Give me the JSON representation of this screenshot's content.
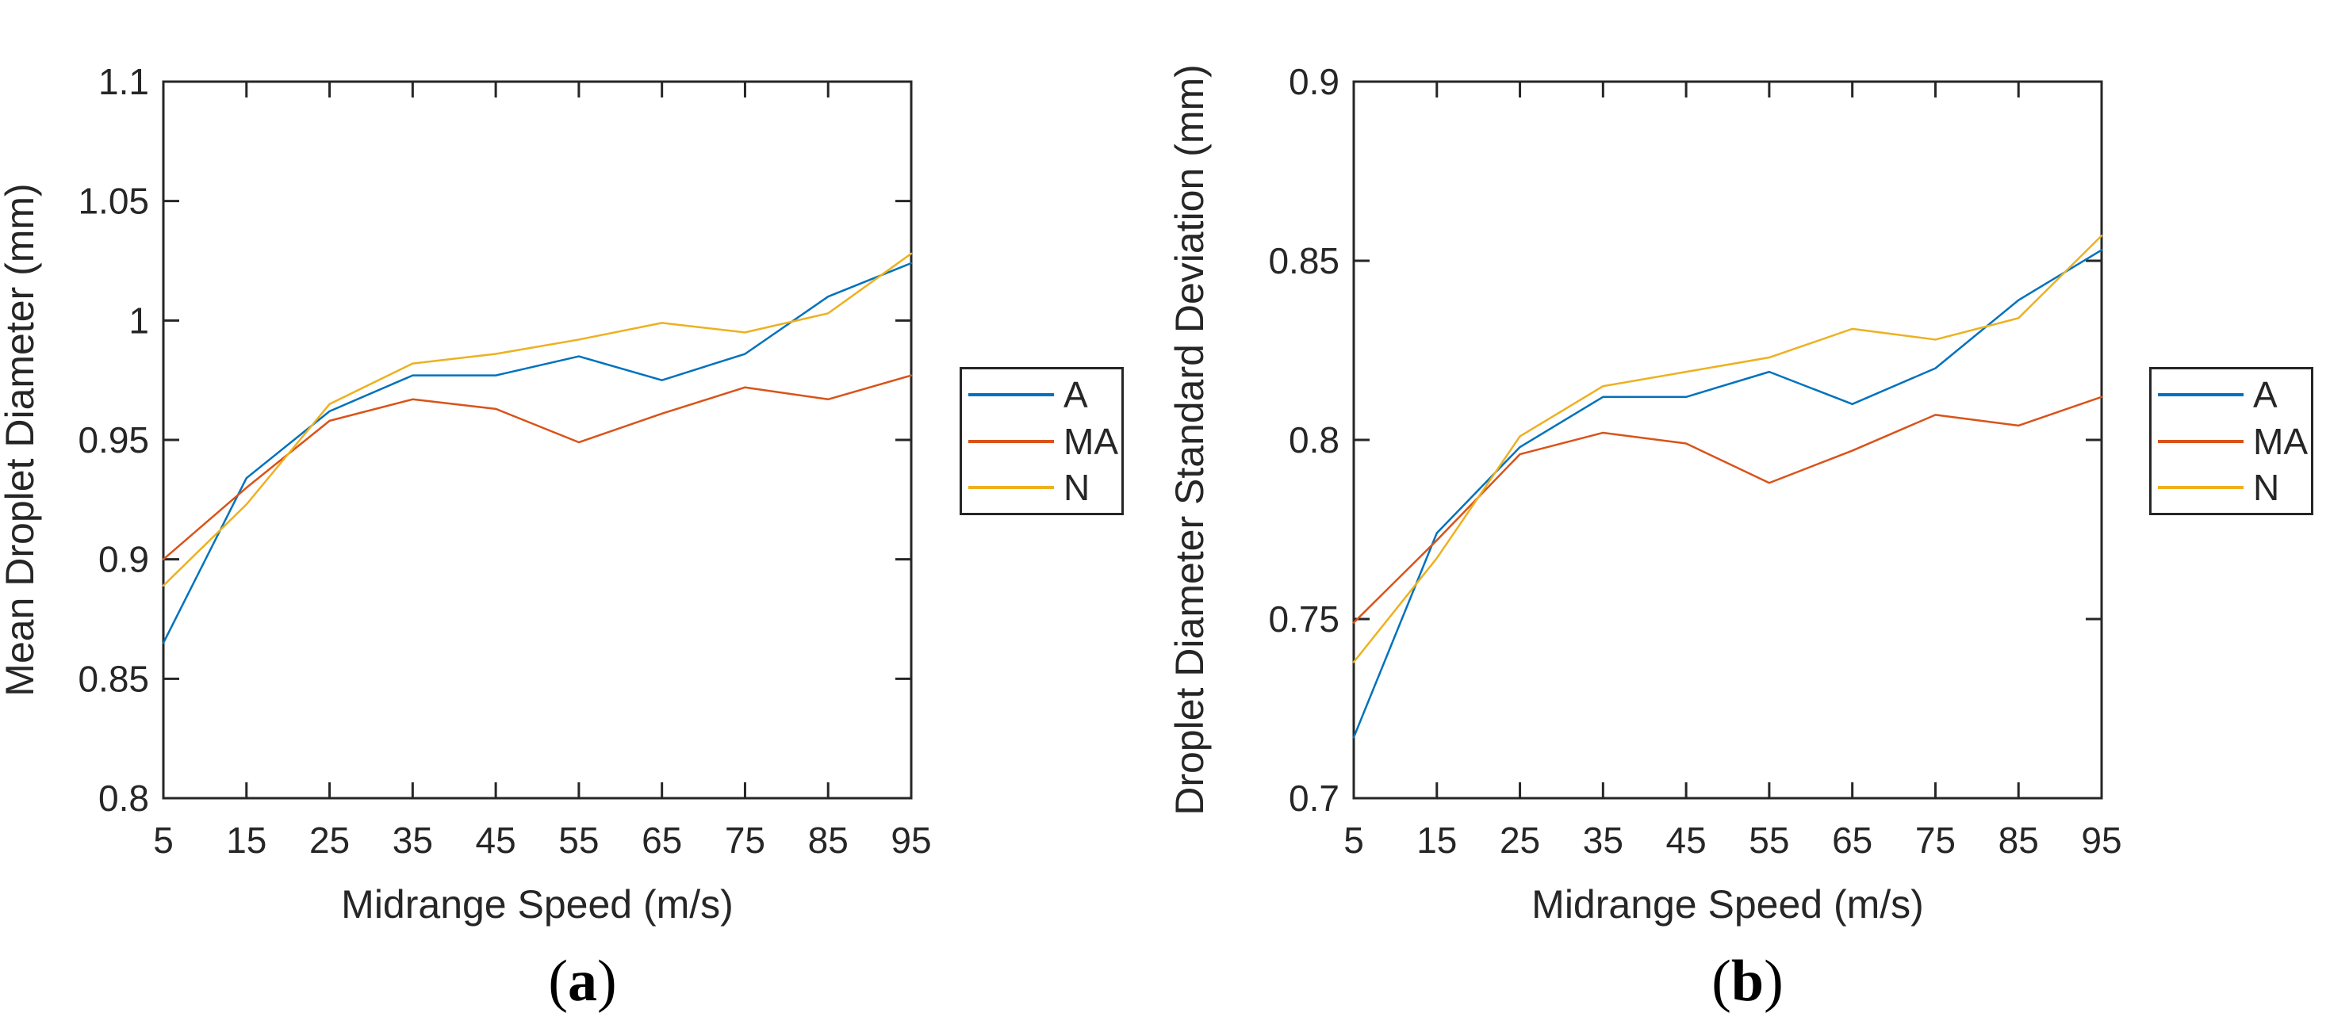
{
  "figure": {
    "background": "#ffffff",
    "text_color": "#262626",
    "axis_color": "#262626",
    "series_colors": {
      "A": "#0072BD",
      "MA": "#D95319",
      "N": "#EDB120"
    }
  },
  "chart_data": [
    {
      "type": "line",
      "panel": "a",
      "caption_open": "(",
      "caption_letter": "a",
      "caption_close": ")",
      "xlabel": "Midrange Speed (m/s)",
      "ylabel": "Mean Droplet Diameter (mm)",
      "grid": false,
      "legend_position": "right-outside",
      "xlim": [
        5,
        95
      ],
      "ylim": [
        0.8,
        1.1
      ],
      "x": [
        5,
        15,
        25,
        35,
        45,
        55,
        65,
        75,
        85,
        95
      ],
      "xtick_labels": [
        "5",
        "15",
        "25",
        "35",
        "45",
        "55",
        "65",
        "75",
        "85",
        "95"
      ],
      "yticks": [
        0.8,
        0.85,
        0.9,
        0.95,
        1.0,
        1.05,
        1.1
      ],
      "ytick_labels": [
        "0.8",
        "0.85",
        "0.9",
        "0.95",
        "1",
        "1.05",
        "1.1"
      ],
      "series": [
        {
          "name": "A",
          "color": "#0072BD",
          "values": [
            0.865,
            0.934,
            0.962,
            0.977,
            0.977,
            0.985,
            0.975,
            0.986,
            1.01,
            1.024
          ]
        },
        {
          "name": "MA",
          "color": "#D95319",
          "values": [
            0.9,
            0.93,
            0.958,
            0.967,
            0.963,
            0.949,
            0.961,
            0.972,
            0.967,
            0.977
          ]
        },
        {
          "name": "N",
          "color": "#EDB120",
          "values": [
            0.889,
            0.923,
            0.965,
            0.982,
            0.986,
            0.992,
            0.999,
            0.995,
            1.003,
            1.028
          ]
        }
      ]
    },
    {
      "type": "line",
      "panel": "b",
      "caption_open": "(",
      "caption_letter": "b",
      "caption_close": ")",
      "xlabel": "Midrange Speed (m/s)",
      "ylabel": "Droplet Diameter Standard Deviation (mm)",
      "grid": false,
      "legend_position": "right-outside",
      "xlim": [
        5,
        95
      ],
      "ylim": [
        0.7,
        0.9
      ],
      "x": [
        5,
        15,
        25,
        35,
        45,
        55,
        65,
        75,
        85,
        95
      ],
      "xtick_labels": [
        "5",
        "15",
        "25",
        "35",
        "45",
        "55",
        "65",
        "75",
        "85",
        "95"
      ],
      "yticks": [
        0.7,
        0.75,
        0.8,
        0.85,
        0.9
      ],
      "ytick_labels": [
        "0.7",
        "0.75",
        "0.8",
        "0.85",
        "0.9"
      ],
      "series": [
        {
          "name": "A",
          "color": "#0072BD",
          "values": [
            0.717,
            0.774,
            0.798,
            0.812,
            0.812,
            0.819,
            0.81,
            0.82,
            0.839,
            0.853
          ]
        },
        {
          "name": "MA",
          "color": "#D95319",
          "values": [
            0.749,
            0.772,
            0.796,
            0.802,
            0.799,
            0.788,
            0.797,
            0.807,
            0.804,
            0.812
          ]
        },
        {
          "name": "N",
          "color": "#EDB120",
          "values": [
            0.738,
            0.767,
            0.801,
            0.815,
            0.819,
            0.823,
            0.831,
            0.828,
            0.834,
            0.857
          ]
        }
      ]
    }
  ]
}
